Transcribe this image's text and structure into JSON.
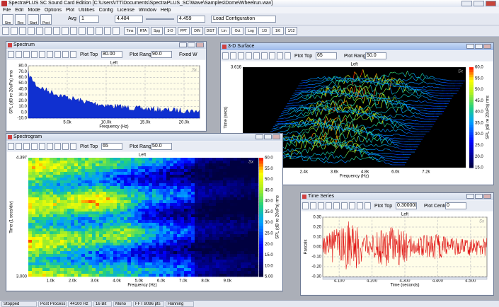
{
  "title_bar": {
    "title": "SpectraPLUS SC Sound Card Edition [C:\\Users\\ITT\\Documents\\SpectraPLUS_SC\\Wave\\Samples\\Dome\\Wheelrun.wav]"
  },
  "menu": [
    "File",
    "Edit",
    "Mode",
    "Options",
    "Plot",
    "Utilities",
    "Config",
    "License",
    "Window",
    "Help"
  ],
  "toolbar": {
    "mode_buttons": [
      "Sim",
      "Rec",
      "Start",
      "Post"
    ],
    "avg_label": "Avg",
    "avg_value": "1",
    "time_start": "4.484",
    "time_end": "4.459",
    "config": "Load Configuration"
  },
  "toolbar2": {
    "buttons": [
      "Tms",
      "RTA",
      "Spg",
      "3-D",
      "PPT",
      "DIN",
      "DIST",
      "Lin",
      "Oct",
      "Log",
      "1/3",
      "1/6",
      "1/12"
    ]
  },
  "windows": {
    "spectrum": {
      "title": "Spectrum",
      "fields": [
        {
          "label": "Plot Top",
          "value": "80.00"
        },
        {
          "label": "Plot Range",
          "value": "90.0"
        }
      ],
      "extra": "Fixed W",
      "channel": "Left",
      "badge": "Sx",
      "y_label": "SPL (dB re 20uPa) rms",
      "x_label": "Frequency (Hz)",
      "yticks": [
        "80.0",
        "70.0",
        "60.0",
        "50.0",
        "40.0",
        "30.0",
        "20.0",
        "10.0",
        "0.0",
        "-10.0"
      ],
      "xticks": [
        "5.0k",
        "10.0k",
        "15.0k",
        "20.0k"
      ]
    },
    "surface": {
      "title": "3-D Surface",
      "fields": [
        {
          "label": "Plot Top",
          "value": "65"
        },
        {
          "label": "Plot Range",
          "value": "50.0"
        }
      ],
      "channel": "Left",
      "badge": "Sx",
      "y_label": "Time (secs)",
      "x_label": "Frequency (Hz)",
      "color_label": "SPL (dB re 20uPa) rms",
      "yticks": [
        "3.616",
        "3.608"
      ],
      "xticks": [
        "1.2k",
        "2.4k",
        "3.6k",
        "4.8k",
        "6.0k",
        "7.2k"
      ],
      "color_ticks": [
        "60.0",
        "55.0",
        "50.0",
        "45.0",
        "40.0",
        "35.0",
        "30.0",
        "25.0",
        "20.0",
        "15.0"
      ]
    },
    "spectrogram": {
      "title": "Spectrogram",
      "fields": [
        {
          "label": "Plot Top",
          "value": "65"
        },
        {
          "label": "Plot Range",
          "value": "50.0"
        }
      ],
      "channel": "Left",
      "badge": "Sx",
      "y_label": "Time (1 secs/div)",
      "x_label": "Frequency (Hz)",
      "color_label": "SPL (dB re 20uPa) rms",
      "yticks": [
        "4.397",
        "3.000"
      ],
      "xticks": [
        "1.0k",
        "2.0k",
        "3.0k",
        "4.0k",
        "5.0k",
        "6.0k",
        "7.0k",
        "8.0k",
        "9.0k"
      ],
      "color_ticks": [
        "60.0",
        "55.0",
        "50.0",
        "45.0",
        "40.0",
        "35.0",
        "30.0",
        "25.0",
        "20.0",
        "15.0",
        "10.0",
        "5.00"
      ]
    },
    "timeseries": {
      "title": "Time Series",
      "fields": [
        {
          "label": "Plot Top",
          "value": "0.300000"
        },
        {
          "label": "Plot Center",
          "value": "0"
        }
      ],
      "channel": "Left",
      "badge": "Sx",
      "y_label": "Pascals",
      "x_label": "Time (seconds)",
      "yticks": [
        "0.30",
        "0.20",
        "0.10",
        "0.00",
        "-0.10",
        "-0.20",
        "-0.30"
      ],
      "xticks": [
        "4.100",
        "4.200",
        "4.300",
        "4.400",
        "4.500"
      ]
    }
  },
  "status_bar": [
    "Stopped",
    "Post Process",
    "44100 Hz",
    "16 Bit",
    "Mono",
    "FFT 8096 pts",
    "Hanning"
  ]
}
